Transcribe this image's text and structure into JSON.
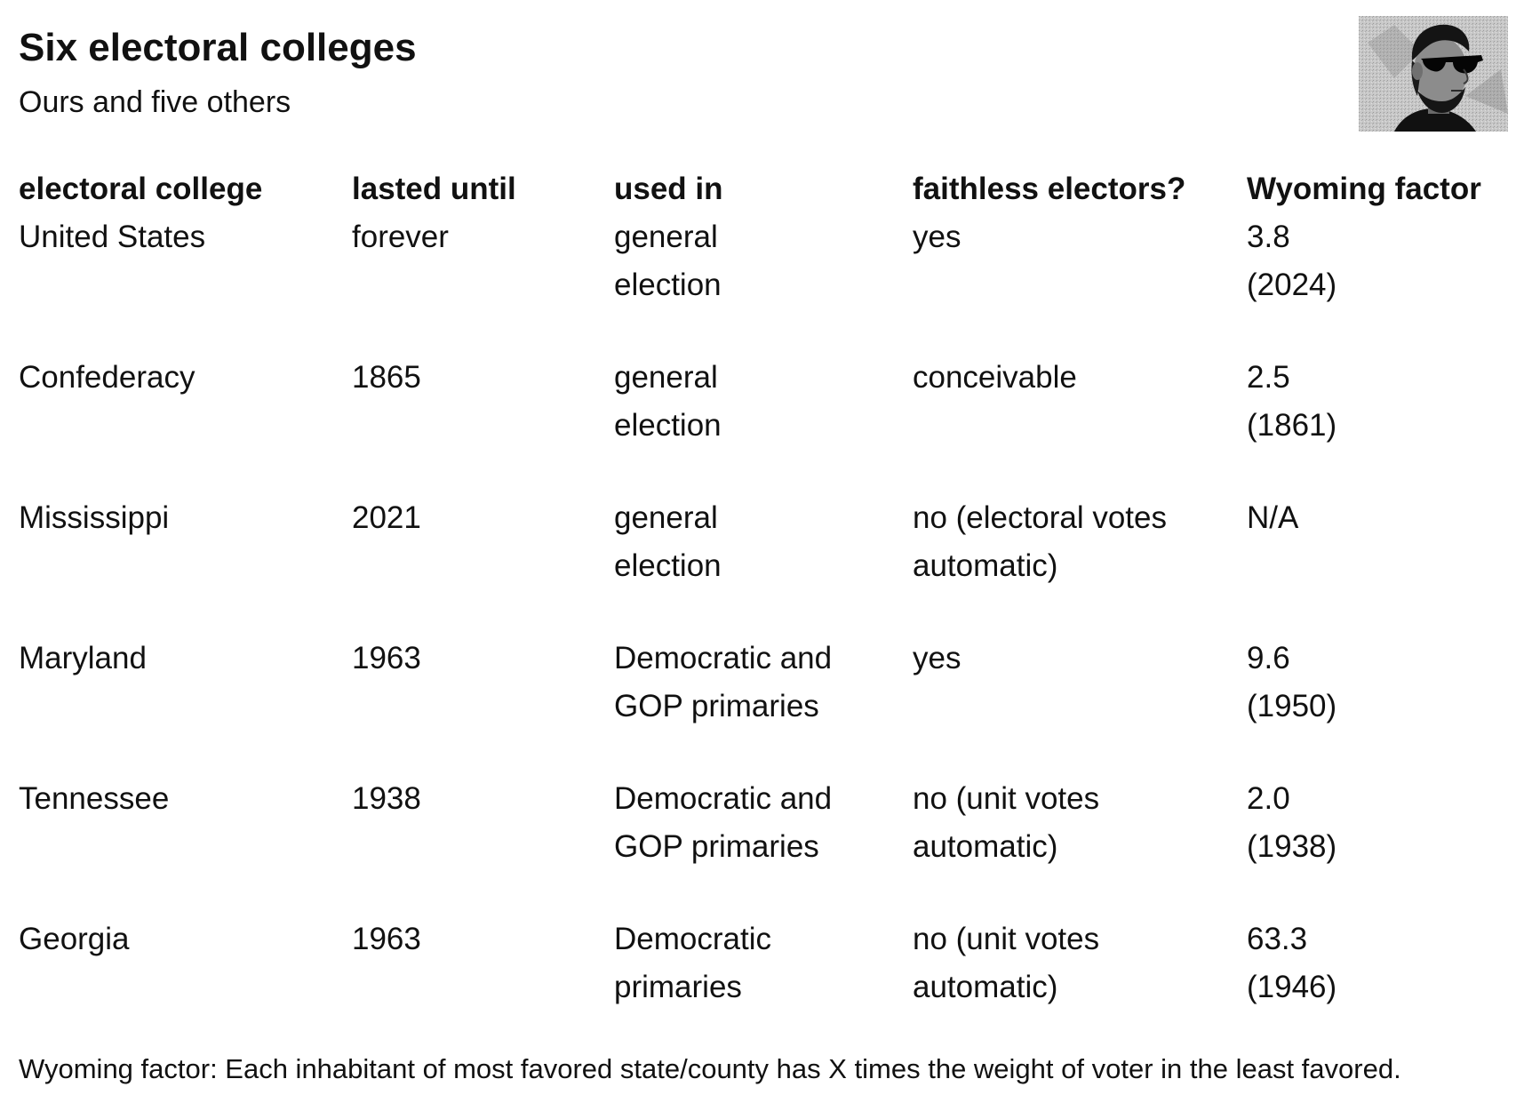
{
  "title": "Six electoral colleges",
  "subtitle": "Ours and five others",
  "image_icon": "portrait-with-sunglasses",
  "table": {
    "headers": [
      "electoral college",
      "lasted until",
      "used in",
      "faithless electors?",
      "Wyoming factor"
    ],
    "rows": [
      {
        "college": "United States",
        "lasted_until": "forever",
        "used_in": [
          "general",
          "election"
        ],
        "faithless": [
          "yes"
        ],
        "wyoming": [
          "3.8",
          "(2024)"
        ]
      },
      {
        "college": "Confederacy",
        "lasted_until": "1865",
        "used_in": [
          "general",
          "election"
        ],
        "faithless": [
          "conceivable"
        ],
        "wyoming": [
          "2.5",
          "(1861)"
        ]
      },
      {
        "college": "Mississippi",
        "lasted_until": "2021",
        "used_in": [
          "general",
          "election"
        ],
        "faithless": [
          "no (electoral votes",
          "automatic)"
        ],
        "wyoming": [
          "N/A"
        ]
      },
      {
        "college": "Maryland",
        "lasted_until": "1963",
        "used_in": [
          "Democratic and",
          "GOP primaries"
        ],
        "faithless": [
          "yes"
        ],
        "wyoming": [
          "9.6",
          "(1950)"
        ]
      },
      {
        "college": "Tennessee",
        "lasted_until": "1938",
        "used_in": [
          "Democratic and",
          "GOP primaries"
        ],
        "faithless": [
          "no (unit votes",
          "automatic)"
        ],
        "wyoming": [
          "2.0",
          "(1938)"
        ]
      },
      {
        "college": "Georgia",
        "lasted_until": "1963",
        "used_in": [
          "Democratic",
          "primaries"
        ],
        "faithless": [
          "no (unit votes",
          "automatic)"
        ],
        "wyoming": [
          "63.3",
          "(1946)"
        ]
      }
    ]
  },
  "footnote": "Wyoming factor: Each inhabitant of most favored state/county has X times the weight of voter in the least favored."
}
